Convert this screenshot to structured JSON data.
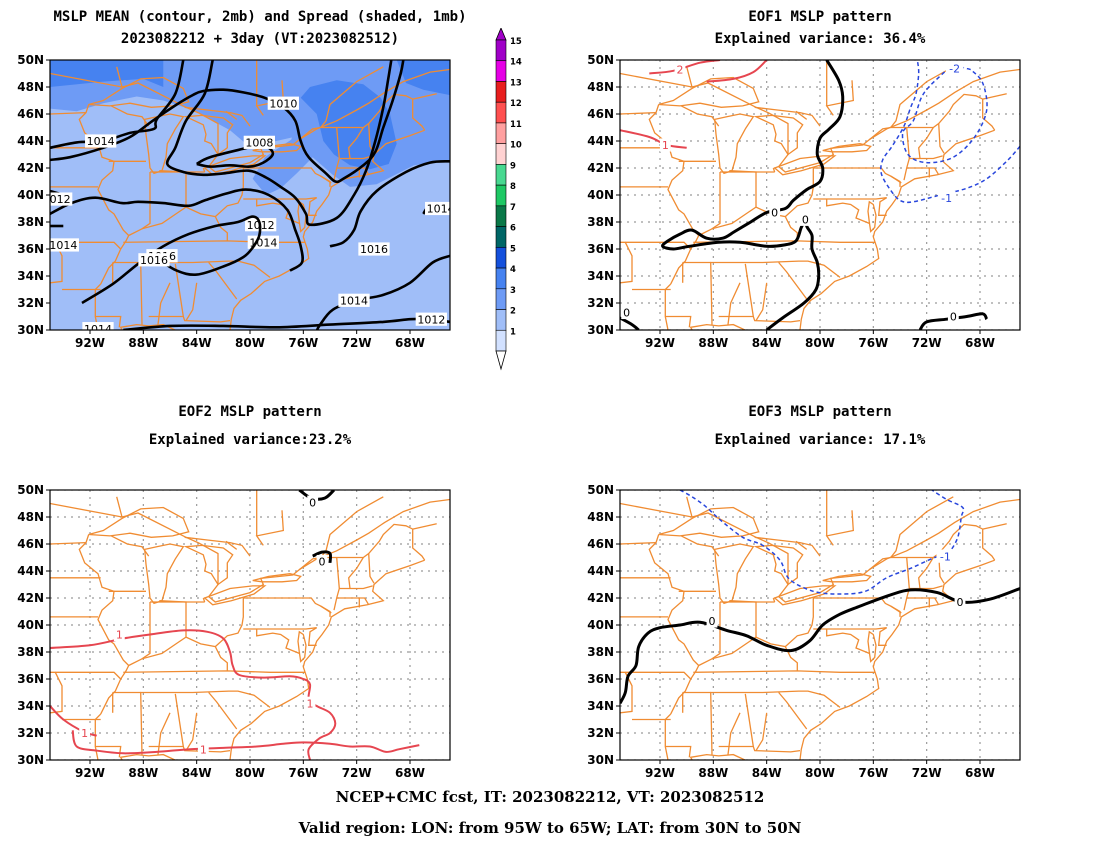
{
  "panels": [
    {
      "id": "p1",
      "title1": "MSLP MEAN (contour, 2mb) and Spread (shaded, 1mb)",
      "title2": "2023082212 + 3day (VT:2023082512)"
    },
    {
      "id": "p2",
      "title1": "EOF1 MSLP pattern",
      "title2": "Explained variance: 36.4%"
    },
    {
      "id": "p3",
      "title1": "EOF2 MSLP pattern",
      "title2": "Explained variance:23.2%"
    },
    {
      "id": "p4",
      "title1": "EOF3 MSLP pattern",
      "title2": "Explained variance: 17.1%"
    }
  ],
  "lat_labels": [
    "50N",
    "48N",
    "46N",
    "44N",
    "42N",
    "40N",
    "38N",
    "36N",
    "34N",
    "32N",
    "30N"
  ],
  "lon_labels": [
    "92W",
    "88W",
    "84W",
    "80W",
    "76W",
    "72W",
    "68W"
  ],
  "colorbar": {
    "labels": [
      "15",
      "14",
      "13",
      "12",
      "11",
      "10",
      "9",
      "8",
      "7",
      "6",
      "5",
      "4",
      "3",
      "2",
      "1"
    ],
    "colors": [
      "#a000c8",
      "#e600e6",
      "#e81e1e",
      "#ff5050",
      "#ffa0a0",
      "#ffd2d2",
      "#48d890",
      "#1ec864",
      "#0a7848",
      "#006666",
      "#1450dc",
      "#4682f0",
      "#6e9bf5",
      "#a0bef8",
      "#d2e1ff"
    ]
  },
  "colors": {
    "map": "#f08c32",
    "positive": "#e64650",
    "negative": "#2846dc",
    "zero": "#000000"
  },
  "contour_labels": {
    "p1": [
      "1010",
      "1008",
      "1014",
      "1012",
      "1014",
      "1012",
      "1016",
      "1016",
      "1014",
      "1016",
      "1014",
      "1014",
      "1012",
      "1010",
      "1014"
    ],
    "p2": [
      "2",
      "1",
      "0",
      "0",
      "-2",
      "-1",
      "0",
      "0"
    ],
    "p3": [
      "0",
      "0",
      "1",
      "1",
      "1",
      "1"
    ],
    "p4": [
      "0",
      "0",
      "-1"
    ]
  },
  "footer": {
    "line1": "NCEP+CMC fcst, IT: 2023082212, VT: 2023082512",
    "line2": "Valid region: LON: from 95W to 65W; LAT: from 30N to 50N"
  }
}
